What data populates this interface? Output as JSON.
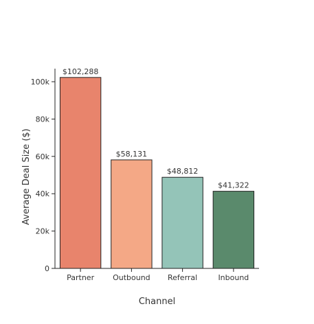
{
  "chart_data": {
    "type": "bar",
    "title": "",
    "xlabel": "Channel",
    "ylabel": "Average Deal Size ($)",
    "categories": [
      "Partner",
      "Outbound",
      "Referral",
      "Inbound"
    ],
    "values": [
      102288,
      58131,
      48812,
      41322
    ],
    "data_labels": [
      "$102,288",
      "$58,131",
      "$48,812",
      "$41,322"
    ],
    "colors": [
      "#e8846c",
      "#f4a886",
      "#94c4b8",
      "#5a8a6c"
    ],
    "bar_edge_color": "#222222",
    "ylim": [
      0,
      107000
    ],
    "yticks": [
      0,
      20000,
      40000,
      60000,
      80000,
      100000
    ],
    "ytick_labels": [
      "0",
      "20k",
      "40k",
      "60k",
      "80k",
      "100k"
    ],
    "grid": false,
    "legend": "none"
  }
}
